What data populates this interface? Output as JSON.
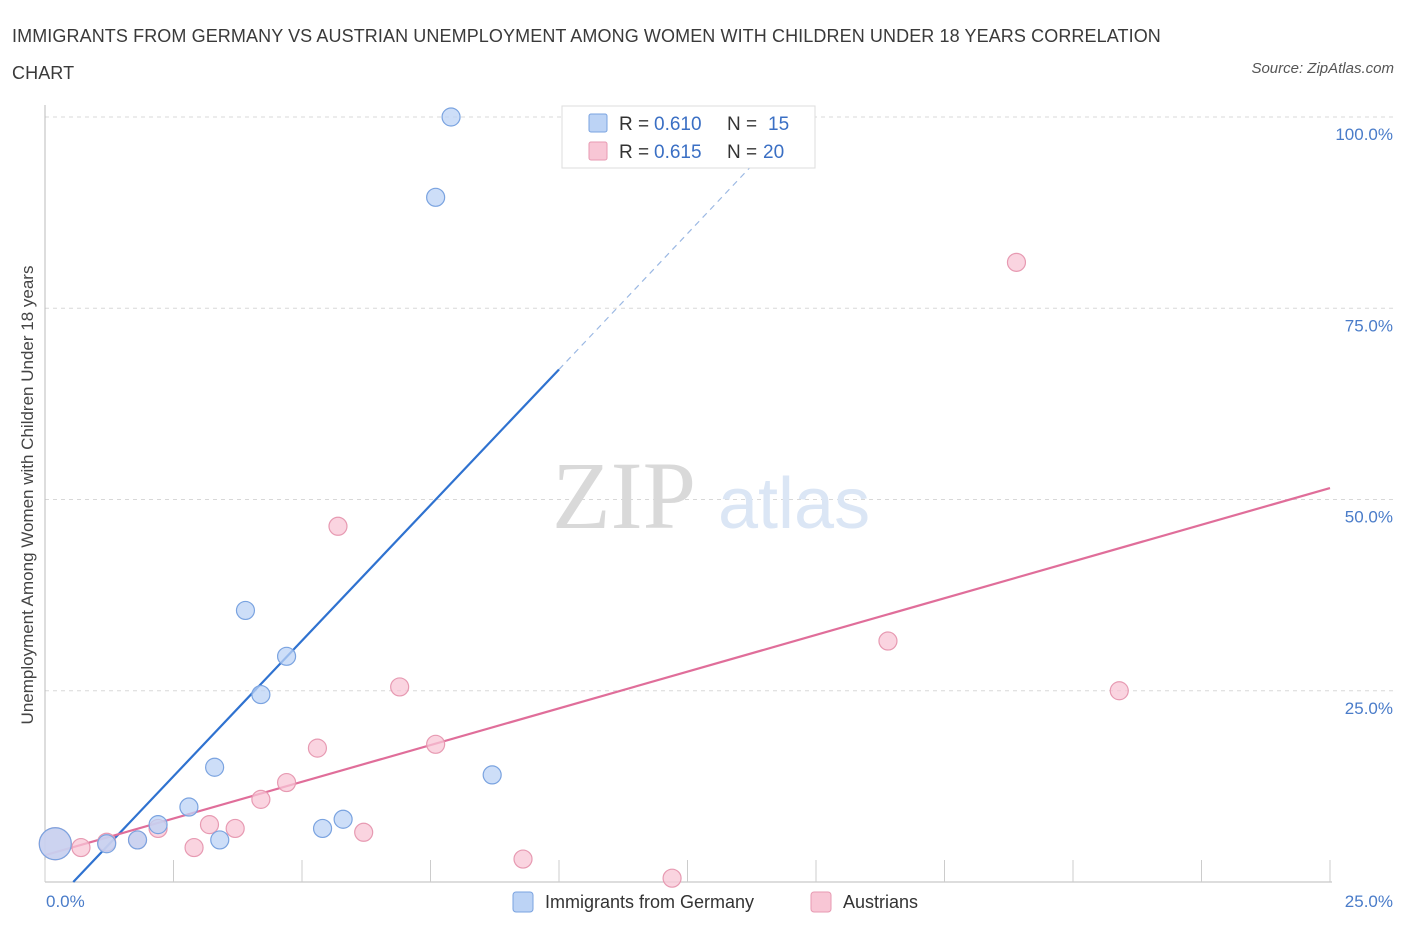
{
  "title": "IMMIGRANTS FROM GERMANY VS AUSTRIAN UNEMPLOYMENT AMONG WOMEN WITH CHILDREN UNDER 18 YEARS CORRELATION CHART",
  "source": "Source: ZipAtlas.com",
  "watermark": {
    "zip": "ZIP",
    "atlas": "atlas"
  },
  "colors": {
    "blue_fill": "#bcd3f5",
    "blue_stroke": "#7aa3e0",
    "blue_line": "#2f72d0",
    "pink_fill": "#f8c6d5",
    "pink_stroke": "#e79ab2",
    "pink_line": "#e06e9a",
    "grid": "#d8d8d8",
    "tick_label": "#4a7cc9"
  },
  "legend": {
    "r_label": "R =",
    "n_label": "N =",
    "items": [
      {
        "r": "0.610",
        "n": "15"
      },
      {
        "r": "0.615",
        "n": "20"
      }
    ]
  },
  "chart_data": {
    "type": "scatter",
    "ylabel": "Unemployment Among Women with Children Under 18 years",
    "xlim": [
      0,
      25
    ],
    "ylim": [
      0,
      100
    ],
    "x_ticks": [
      "0.0%",
      "25.0%"
    ],
    "y_ticks": [
      {
        "value": 100,
        "label": "100.0%"
      },
      {
        "value": 75,
        "label": "75.0%"
      },
      {
        "value": 50,
        "label": "50.0%"
      },
      {
        "value": 25,
        "label": "25.0%"
      }
    ],
    "grid": "horizontal dashed",
    "legend_position": "top-center",
    "series": [
      {
        "name": "Immigrants from Germany",
        "color": "blue",
        "points": [
          [
            0.2,
            5.0,
            16
          ],
          [
            1.2,
            5.0,
            9
          ],
          [
            1.8,
            5.5,
            9
          ],
          [
            2.2,
            7.5,
            9
          ],
          [
            2.8,
            9.8,
            9
          ],
          [
            3.3,
            15.0,
            9
          ],
          [
            3.4,
            5.5,
            9
          ],
          [
            3.9,
            35.5,
            9
          ],
          [
            4.2,
            24.5,
            9
          ],
          [
            4.7,
            29.5,
            9
          ],
          [
            5.4,
            7.0,
            9
          ],
          [
            5.8,
            8.2,
            9
          ],
          [
            7.6,
            89.5,
            9
          ],
          [
            7.9,
            100.0,
            9
          ],
          [
            8.7,
            14.0,
            9
          ]
        ],
        "trend": {
          "x0": 0.55,
          "y0": 0,
          "x1": 10.0,
          "y1": 67.0,
          "dash_to_x": 13.8,
          "dash_to_y": 94.0
        }
      },
      {
        "name": "Austrians",
        "color": "pink",
        "points": [
          [
            0.2,
            5.0,
            16
          ],
          [
            0.7,
            4.5,
            9
          ],
          [
            1.2,
            5.2,
            9
          ],
          [
            1.8,
            5.5,
            9
          ],
          [
            2.2,
            7.0,
            9
          ],
          [
            2.9,
            4.5,
            9
          ],
          [
            3.2,
            7.5,
            9
          ],
          [
            3.7,
            7.0,
            9
          ],
          [
            4.2,
            10.8,
            9
          ],
          [
            4.7,
            13.0,
            9
          ],
          [
            5.3,
            17.5,
            9
          ],
          [
            5.7,
            46.5,
            9
          ],
          [
            6.2,
            6.5,
            9
          ],
          [
            6.9,
            25.5,
            9
          ],
          [
            7.6,
            18.0,
            9
          ],
          [
            9.3,
            3.0,
            9
          ],
          [
            12.2,
            0.5,
            9
          ],
          [
            16.4,
            31.5,
            9
          ],
          [
            18.9,
            81.0,
            9
          ],
          [
            20.9,
            25.0,
            9
          ]
        ],
        "trend": {
          "x0": 0,
          "y0": 3.5,
          "x1": 25.0,
          "y1": 51.5
        }
      }
    ]
  }
}
